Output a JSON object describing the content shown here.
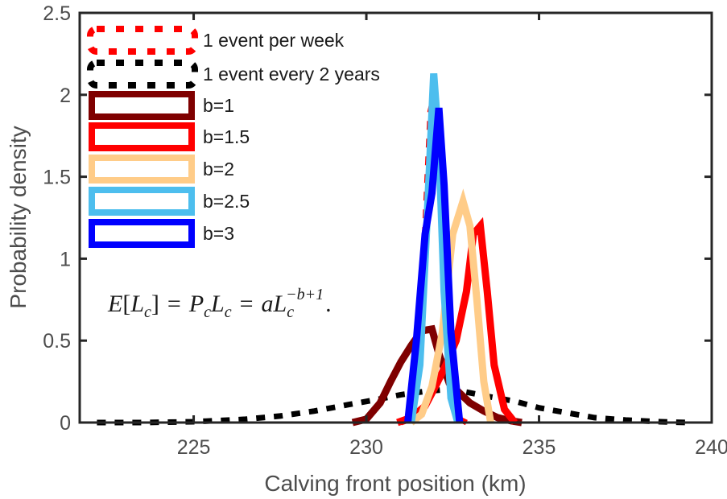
{
  "chart_data": {
    "type": "line",
    "title": "",
    "xlabel": "Calving front position (km)",
    "ylabel": "Probability density",
    "xlim": [
      221.7,
      240
    ],
    "ylim": [
      0,
      2.5
    ],
    "xticks": [
      225,
      230,
      235,
      240
    ],
    "xtick_labels": [
      "225",
      "230",
      "235",
      "240"
    ],
    "yticks": [
      0,
      0.5,
      1,
      1.5,
      2,
      2.5
    ],
    "ytick_labels": [
      "0",
      "0.5",
      "1",
      "1.5",
      "2",
      "2.5"
    ],
    "grid": false,
    "legend_position": "top-left",
    "annotation": {
      "text": "E[L_c] = P_c L_c = a L_c^(-b+1).",
      "parts": {
        "E": "E",
        "lb": "[",
        "L": "L",
        "c": "c",
        "rb": "]",
        "eq": "=",
        "P": "P",
        "a": "a",
        "exp": "−b+1",
        "period": "."
      }
    },
    "series": [
      {
        "name": "1 event per week",
        "color": "#ff0000",
        "style": "dotted",
        "x": [
          231.0,
          231.3,
          231.5,
          231.7,
          231.85,
          232.0,
          232.15,
          232.3,
          232.5,
          232.7,
          232.9
        ],
        "y": [
          0.0,
          0.02,
          0.3,
          1.2,
          1.9,
          2.03,
          1.5,
          0.6,
          0.1,
          0.02,
          0.0
        ]
      },
      {
        "name": "1 event every 2 years",
        "color": "#000000",
        "style": "dotted",
        "x": [
          222.2,
          223.5,
          225.0,
          226.5,
          227.5,
          228.5,
          229.5,
          230.3,
          231.0,
          231.7,
          232.2,
          232.8,
          233.5,
          234.3,
          235.0,
          235.8,
          236.6,
          237.5,
          238.5,
          239.3
        ],
        "y": [
          0.0,
          0.0,
          0.005,
          0.02,
          0.04,
          0.07,
          0.11,
          0.14,
          0.17,
          0.19,
          0.2,
          0.19,
          0.16,
          0.13,
          0.09,
          0.06,
          0.03,
          0.015,
          0.005,
          0.0
        ]
      },
      {
        "name": "b=1",
        "color": "#7f0000",
        "style": "solid",
        "x": [
          229.6,
          230.0,
          230.4,
          230.7,
          231.0,
          231.3,
          231.6,
          231.9,
          232.1,
          232.4,
          232.7,
          233.0,
          233.4,
          233.8,
          234.2,
          234.5
        ],
        "y": [
          0.0,
          0.02,
          0.12,
          0.25,
          0.37,
          0.47,
          0.56,
          0.57,
          0.42,
          0.24,
          0.18,
          0.12,
          0.07,
          0.03,
          0.01,
          0.0
        ]
      },
      {
        "name": "b=1.5",
        "color": "#ff0000",
        "style": "solid",
        "x": [
          230.9,
          231.3,
          231.7,
          232.0,
          232.3,
          232.6,
          232.9,
          233.1,
          233.3,
          233.5,
          233.7,
          234.0,
          234.3
        ],
        "y": [
          0.0,
          0.03,
          0.1,
          0.22,
          0.35,
          0.5,
          0.8,
          1.15,
          1.2,
          0.8,
          0.35,
          0.08,
          0.0
        ]
      },
      {
        "name": "b=2",
        "color": "#ffcc88",
        "style": "solid",
        "x": [
          231.3,
          231.6,
          231.9,
          232.2,
          232.5,
          232.8,
          233.0,
          233.2,
          233.4,
          233.6
        ],
        "y": [
          0.0,
          0.05,
          0.22,
          0.55,
          1.15,
          1.35,
          1.2,
          0.75,
          0.25,
          0.0
        ]
      },
      {
        "name": "b=2.5",
        "color": "#4dbeee",
        "style": "solid",
        "x": [
          231.3,
          231.55,
          231.75,
          231.95,
          232.1,
          232.25,
          232.45,
          232.65
        ],
        "y": [
          0.0,
          0.35,
          1.2,
          2.13,
          1.7,
          0.8,
          0.15,
          0.0
        ]
      },
      {
        "name": "b=3",
        "color": "#0000ff",
        "style": "solid",
        "x": [
          231.2,
          231.45,
          231.7,
          231.9,
          232.1,
          232.25,
          232.45,
          232.7
        ],
        "y": [
          0.0,
          0.5,
          1.15,
          1.4,
          1.92,
          1.45,
          0.55,
          0.0
        ]
      }
    ]
  }
}
